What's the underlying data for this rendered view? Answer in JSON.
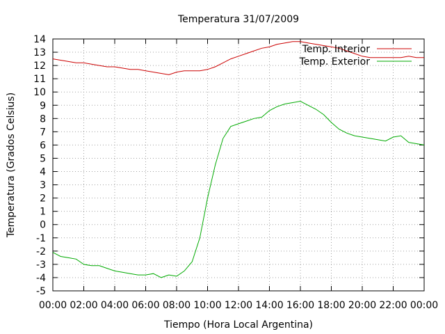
{
  "chart_data": {
    "type": "line",
    "title": "Temperatura 31/07/2009",
    "xlabel": "Tiempo (Hora Local Argentina)",
    "ylabel": "Temperatura (Grados Celsius)",
    "xlim": [
      "00:00",
      "24:00"
    ],
    "ylim": [
      -5,
      14
    ],
    "grid": true,
    "legend_position": "top-right",
    "x_ticks": [
      "00:00",
      "02:00",
      "04:00",
      "06:00",
      "08:00",
      "10:00",
      "12:00",
      "14:00",
      "16:00",
      "18:00",
      "20:00",
      "22:00",
      "00:00"
    ],
    "y_ticks": [
      -5,
      -4,
      -3,
      -2,
      -1,
      0,
      1,
      2,
      3,
      4,
      5,
      6,
      7,
      8,
      9,
      10,
      11,
      12,
      13,
      14
    ],
    "x": [
      "00:00",
      "00:30",
      "01:00",
      "01:30",
      "02:00",
      "02:30",
      "03:00",
      "03:30",
      "04:00",
      "04:30",
      "05:00",
      "05:30",
      "06:00",
      "06:30",
      "07:00",
      "07:30",
      "08:00",
      "08:30",
      "09:00",
      "09:30",
      "10:00",
      "10:30",
      "11:00",
      "11:30",
      "12:00",
      "12:30",
      "13:00",
      "13:30",
      "14:00",
      "14:30",
      "15:00",
      "15:30",
      "16:00",
      "16:30",
      "17:00",
      "17:30",
      "18:00",
      "18:30",
      "19:00",
      "19:30",
      "20:00",
      "20:30",
      "21:00",
      "21:30",
      "22:00",
      "22:30",
      "23:00",
      "23:30",
      "24:00"
    ],
    "series": [
      {
        "name": "Temp. Interior",
        "color": "#cc0000",
        "values": [
          12.5,
          12.4,
          12.3,
          12.2,
          12.2,
          12.1,
          12.0,
          11.9,
          11.9,
          11.8,
          11.7,
          11.7,
          11.6,
          11.5,
          11.4,
          11.3,
          11.5,
          11.6,
          11.6,
          11.6,
          11.7,
          11.9,
          12.2,
          12.5,
          12.7,
          12.9,
          13.1,
          13.3,
          13.4,
          13.6,
          13.7,
          13.8,
          13.8,
          13.7,
          13.6,
          13.5,
          13.4,
          13.3,
          13.1,
          12.9,
          12.7,
          12.6,
          12.6,
          12.6,
          12.6,
          12.6,
          12.7,
          12.6,
          12.6
        ]
      },
      {
        "name": "Temp. Exterior",
        "color": "#00aa00",
        "values": [
          -2.1,
          -2.4,
          -2.5,
          -2.6,
          -3.0,
          -3.1,
          -3.1,
          -3.3,
          -3.5,
          -3.6,
          -3.7,
          -3.8,
          -3.8,
          -3.7,
          -4.0,
          -3.8,
          -3.9,
          -3.5,
          -2.8,
          -1.0,
          2.0,
          4.5,
          6.5,
          7.4,
          7.6,
          7.8,
          8.0,
          8.1,
          8.6,
          8.9,
          9.1,
          9.2,
          9.3,
          9.0,
          8.7,
          8.3,
          7.7,
          7.2,
          6.9,
          6.7,
          6.6,
          6.5,
          6.4,
          6.3,
          6.6,
          6.7,
          6.2,
          6.1,
          6.0
        ]
      }
    ]
  }
}
